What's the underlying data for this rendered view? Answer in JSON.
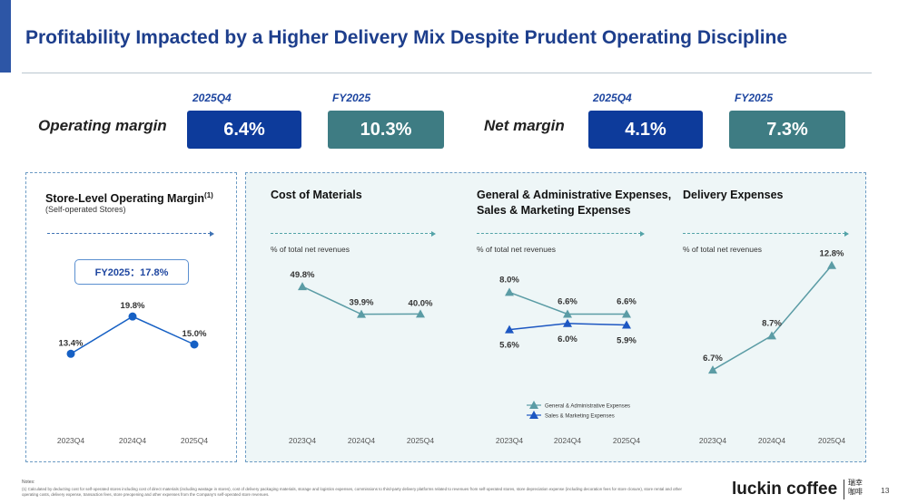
{
  "title": "Profitability Impacted by a Higher Delivery Mix Despite Prudent Operating Discipline",
  "kpis": {
    "operating_margin": {
      "label": "Operating margin",
      "q_period": "2025Q4",
      "q_value": "6.4%",
      "fy_period": "FY2025",
      "fy_value": "10.3%"
    },
    "net_margin": {
      "label": "Net margin",
      "q_period": "2025Q4",
      "q_value": "4.1%",
      "fy_period": "FY2025",
      "fy_value": "7.3%"
    }
  },
  "store_panel": {
    "title": "Store-Level Operating Margin",
    "title_sup": "(1)",
    "subtitle": "(Self-operated Stores)",
    "fy_badge": "FY2025：17.8%"
  },
  "colors": {
    "store": "#1660c4",
    "line_teal": "#5b9ca5",
    "sm_blue": "#1d57c2",
    "kpi_dark": "#0d3b9b",
    "kpi_teal": "#3e7c83"
  },
  "chart_data": [
    {
      "id": "store",
      "type": "line",
      "title": "Store-Level Operating Margin",
      "categories": [
        "2023Q4",
        "2024Q4",
        "2025Q4"
      ],
      "series": [
        {
          "values": [
            13.4,
            19.8,
            15.0
          ],
          "labels": [
            "13.4%",
            "19.8%",
            "15.0%"
          ]
        }
      ],
      "ylim": [
        8,
        22
      ]
    },
    {
      "id": "materials",
      "type": "line",
      "title": "Cost of Materials",
      "unit_label": "% of total net revenues",
      "categories": [
        "2023Q4",
        "2024Q4",
        "2025Q4"
      ],
      "series": [
        {
          "values": [
            49.8,
            39.9,
            40.0
          ],
          "labels": [
            "49.8%",
            "39.9%",
            "40.0%"
          ]
        }
      ],
      "ylim": [
        0,
        55
      ]
    },
    {
      "id": "ga_sm",
      "type": "line",
      "title": "General & Administrative Expenses, Sales & Marketing Expenses",
      "unit_label": "% of total net revenues",
      "categories": [
        "2023Q4",
        "2024Q4",
        "2025Q4"
      ],
      "series": [
        {
          "name": "General & Administrative Expenses",
          "values": [
            8.0,
            6.6,
            6.6
          ],
          "labels": [
            "8.0%",
            "6.6%",
            "6.6%"
          ]
        },
        {
          "name": "Sales & Marketing Expenses",
          "values": [
            5.6,
            6.0,
            5.9
          ],
          "labels": [
            "5.6%",
            "6.0%",
            "5.9%"
          ]
        }
      ],
      "ylim": [
        0,
        10
      ]
    },
    {
      "id": "delivery",
      "type": "line",
      "title": "Delivery Expenses",
      "unit_label": "% of total net revenues",
      "categories": [
        "2023Q4",
        "2024Q4",
        "2025Q4"
      ],
      "series": [
        {
          "values": [
            6.7,
            8.7,
            12.8
          ],
          "labels": [
            "6.7%",
            "8.7%",
            "12.8%"
          ]
        }
      ],
      "ylim": [
        0,
        14
      ]
    }
  ],
  "notes": {
    "label": "Notes:",
    "text": "(1)   Calculated by deducting cost for self-operated stores including cost of direct materials (including wastage in stores), cost of delivery packaging materials, storage and logistics expenses, commissions to third-party delivery platforms related to revenues from self-operated stores, store depreciation expense (including decoration fees for store closure), store rental and other operating costs, delivery expense, transaction fees, store preopening and other expenses from the Company's self-operated store revenues."
  },
  "brand": {
    "name": "luckin coffee",
    "cn": "瑞幸咖啡"
  },
  "page_number": "13"
}
